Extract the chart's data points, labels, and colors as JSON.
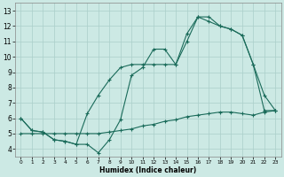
{
  "xlabel": "Humidex (Indice chaleur)",
  "xlim": [
    -0.5,
    23.5
  ],
  "ylim": [
    3.5,
    13.5
  ],
  "xticks": [
    0,
    1,
    2,
    3,
    4,
    5,
    6,
    7,
    8,
    9,
    10,
    11,
    12,
    13,
    14,
    15,
    16,
    17,
    18,
    19,
    20,
    21,
    22,
    23
  ],
  "yticks": [
    4,
    5,
    6,
    7,
    8,
    9,
    10,
    11,
    12,
    13
  ],
  "bg_color": "#cce9e4",
  "line_color": "#1a6b5a",
  "line1_x": [
    0,
    1,
    2,
    3,
    4,
    5,
    6,
    7,
    8,
    9,
    10,
    11,
    12,
    13,
    14,
    15,
    16,
    17,
    18,
    19,
    20,
    21,
    22,
    23
  ],
  "line1_y": [
    6.0,
    5.2,
    5.1,
    4.6,
    4.5,
    4.3,
    4.3,
    3.75,
    4.6,
    5.9,
    8.8,
    9.3,
    10.5,
    10.5,
    9.5,
    11.5,
    12.6,
    12.6,
    12.0,
    11.8,
    11.4,
    9.5,
    6.5,
    6.5
  ],
  "line2_x": [
    0,
    1,
    2,
    3,
    4,
    5,
    6,
    7,
    8,
    9,
    10,
    11,
    12,
    13,
    14,
    15,
    16,
    17,
    18,
    19,
    20,
    21,
    22,
    23
  ],
  "line2_y": [
    6.0,
    5.2,
    5.1,
    4.6,
    4.5,
    4.3,
    6.3,
    7.5,
    8.5,
    9.3,
    9.5,
    9.5,
    9.5,
    9.5,
    9.5,
    11.0,
    12.6,
    12.3,
    12.0,
    11.8,
    11.4,
    9.5,
    7.5,
    6.5
  ],
  "line3_x": [
    0,
    1,
    2,
    3,
    4,
    5,
    6,
    7,
    8,
    9,
    10,
    11,
    12,
    13,
    14,
    15,
    16,
    17,
    18,
    19,
    20,
    21,
    22,
    23
  ],
  "line3_y": [
    5.0,
    5.0,
    5.0,
    5.0,
    5.0,
    5.0,
    5.0,
    5.0,
    5.1,
    5.2,
    5.3,
    5.5,
    5.6,
    5.8,
    5.9,
    6.1,
    6.2,
    6.3,
    6.4,
    6.4,
    6.3,
    6.2,
    6.4,
    6.5
  ],
  "grid_color": "#aacfca",
  "xlabel_fontsize": 5.5,
  "tick_fontsize_x": 4.2,
  "tick_fontsize_y": 5.5
}
